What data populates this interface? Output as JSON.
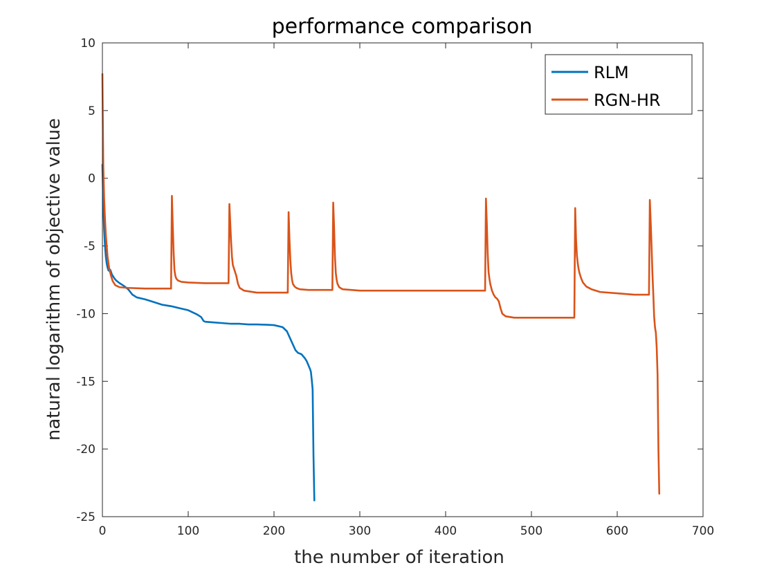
{
  "chart_data": {
    "type": "line",
    "title": "performance comparison",
    "xlabel": "the number of iteration",
    "ylabel": "natural logarithm of objective value",
    "xlim": [
      0,
      700
    ],
    "ylim": [
      -25,
      10
    ],
    "xticks": [
      0,
      100,
      200,
      300,
      400,
      500,
      600,
      700
    ],
    "yticks": [
      -25,
      -20,
      -15,
      -10,
      -5,
      0,
      5,
      10
    ],
    "grid": false,
    "box": true,
    "legend_position": "top-right",
    "series": [
      {
        "name": "RLM",
        "color": "#0072BD",
        "x": [
          0,
          1,
          2,
          3,
          4,
          5,
          6,
          7,
          8,
          9,
          10,
          11,
          12,
          14,
          16,
          20,
          25,
          30,
          35,
          40,
          50,
          60,
          70,
          80,
          90,
          100,
          110,
          115,
          118,
          120,
          130,
          140,
          150,
          160,
          170,
          180,
          190,
          200,
          210,
          215,
          220,
          225,
          228,
          232,
          236,
          238,
          240,
          242,
          243,
          244,
          245,
          246,
          247
        ],
        "y": [
          1.0,
          -2.0,
          -3.8,
          -5.0,
          -5.8,
          -6.3,
          -6.6,
          -6.8,
          -6.85,
          -6.75,
          -6.9,
          -7.1,
          -7.2,
          -7.4,
          -7.55,
          -7.75,
          -7.95,
          -8.2,
          -8.6,
          -8.8,
          -8.95,
          -9.15,
          -9.35,
          -9.45,
          -9.6,
          -9.75,
          -10.05,
          -10.25,
          -10.55,
          -10.6,
          -10.65,
          -10.7,
          -10.75,
          -10.75,
          -10.8,
          -10.8,
          -10.82,
          -10.85,
          -11.0,
          -11.3,
          -12.0,
          -12.7,
          -12.9,
          -13.0,
          -13.3,
          -13.5,
          -13.8,
          -14.1,
          -14.3,
          -14.9,
          -15.6,
          -20.5,
          -23.8
        ]
      },
      {
        "name": "RGN-HR",
        "color": "#D95319",
        "x": [
          0,
          1,
          2,
          3,
          4,
          5,
          6,
          8,
          10,
          12,
          15,
          20,
          30,
          50,
          80,
          81,
          82,
          83,
          84,
          85,
          86,
          88,
          92,
          100,
          120,
          147,
          148,
          149,
          150,
          151,
          152,
          154,
          156,
          158,
          160,
          165,
          180,
          200,
          216,
          217,
          218,
          219,
          220,
          221,
          222,
          224,
          226,
          230,
          240,
          268,
          269,
          270,
          271,
          272,
          273,
          274,
          276,
          280,
          300,
          350,
          400,
          446,
          447,
          448,
          449,
          450,
          451,
          452,
          454,
          456,
          458,
          460,
          462,
          464,
          466,
          470,
          480,
          500,
          530,
          550,
          551,
          552,
          553,
          554,
          555,
          556,
          558,
          560,
          564,
          570,
          580,
          600,
          620,
          637,
          638,
          639,
          640,
          641,
          642,
          643,
          644,
          645,
          646,
          647,
          648,
          649
        ],
        "y": [
          7.7,
          1.0,
          -1.5,
          -3.0,
          -4.2,
          -5.0,
          -5.8,
          -6.7,
          -7.2,
          -7.6,
          -7.9,
          -8.05,
          -8.1,
          -8.15,
          -8.15,
          -1.3,
          -3.5,
          -5.5,
          -6.8,
          -7.2,
          -7.4,
          -7.55,
          -7.65,
          -7.7,
          -7.75,
          -7.75,
          -1.9,
          -3.3,
          -4.7,
          -5.8,
          -6.4,
          -6.8,
          -7.2,
          -7.8,
          -8.1,
          -8.3,
          -8.45,
          -8.45,
          -8.45,
          -2.5,
          -4.5,
          -6.0,
          -7.0,
          -7.5,
          -7.8,
          -8.0,
          -8.1,
          -8.2,
          -8.25,
          -8.25,
          -1.8,
          -3.6,
          -5.8,
          -7.0,
          -7.5,
          -7.8,
          -8.05,
          -8.2,
          -8.3,
          -8.3,
          -8.3,
          -8.3,
          -1.5,
          -3.3,
          -5.5,
          -6.9,
          -7.4,
          -7.8,
          -8.3,
          -8.6,
          -8.8,
          -8.9,
          -9.1,
          -9.6,
          -10.0,
          -10.2,
          -10.3,
          -10.3,
          -10.3,
          -10.3,
          -2.2,
          -4.5,
          -5.7,
          -6.3,
          -6.7,
          -7.0,
          -7.4,
          -7.7,
          -8.0,
          -8.2,
          -8.4,
          -8.5,
          -8.6,
          -8.6,
          -1.6,
          -3.2,
          -5.0,
          -7.0,
          -8.5,
          -10.2,
          -11.0,
          -11.4,
          -12.5,
          -14.5,
          -20.0,
          -23.3
        ]
      }
    ]
  }
}
